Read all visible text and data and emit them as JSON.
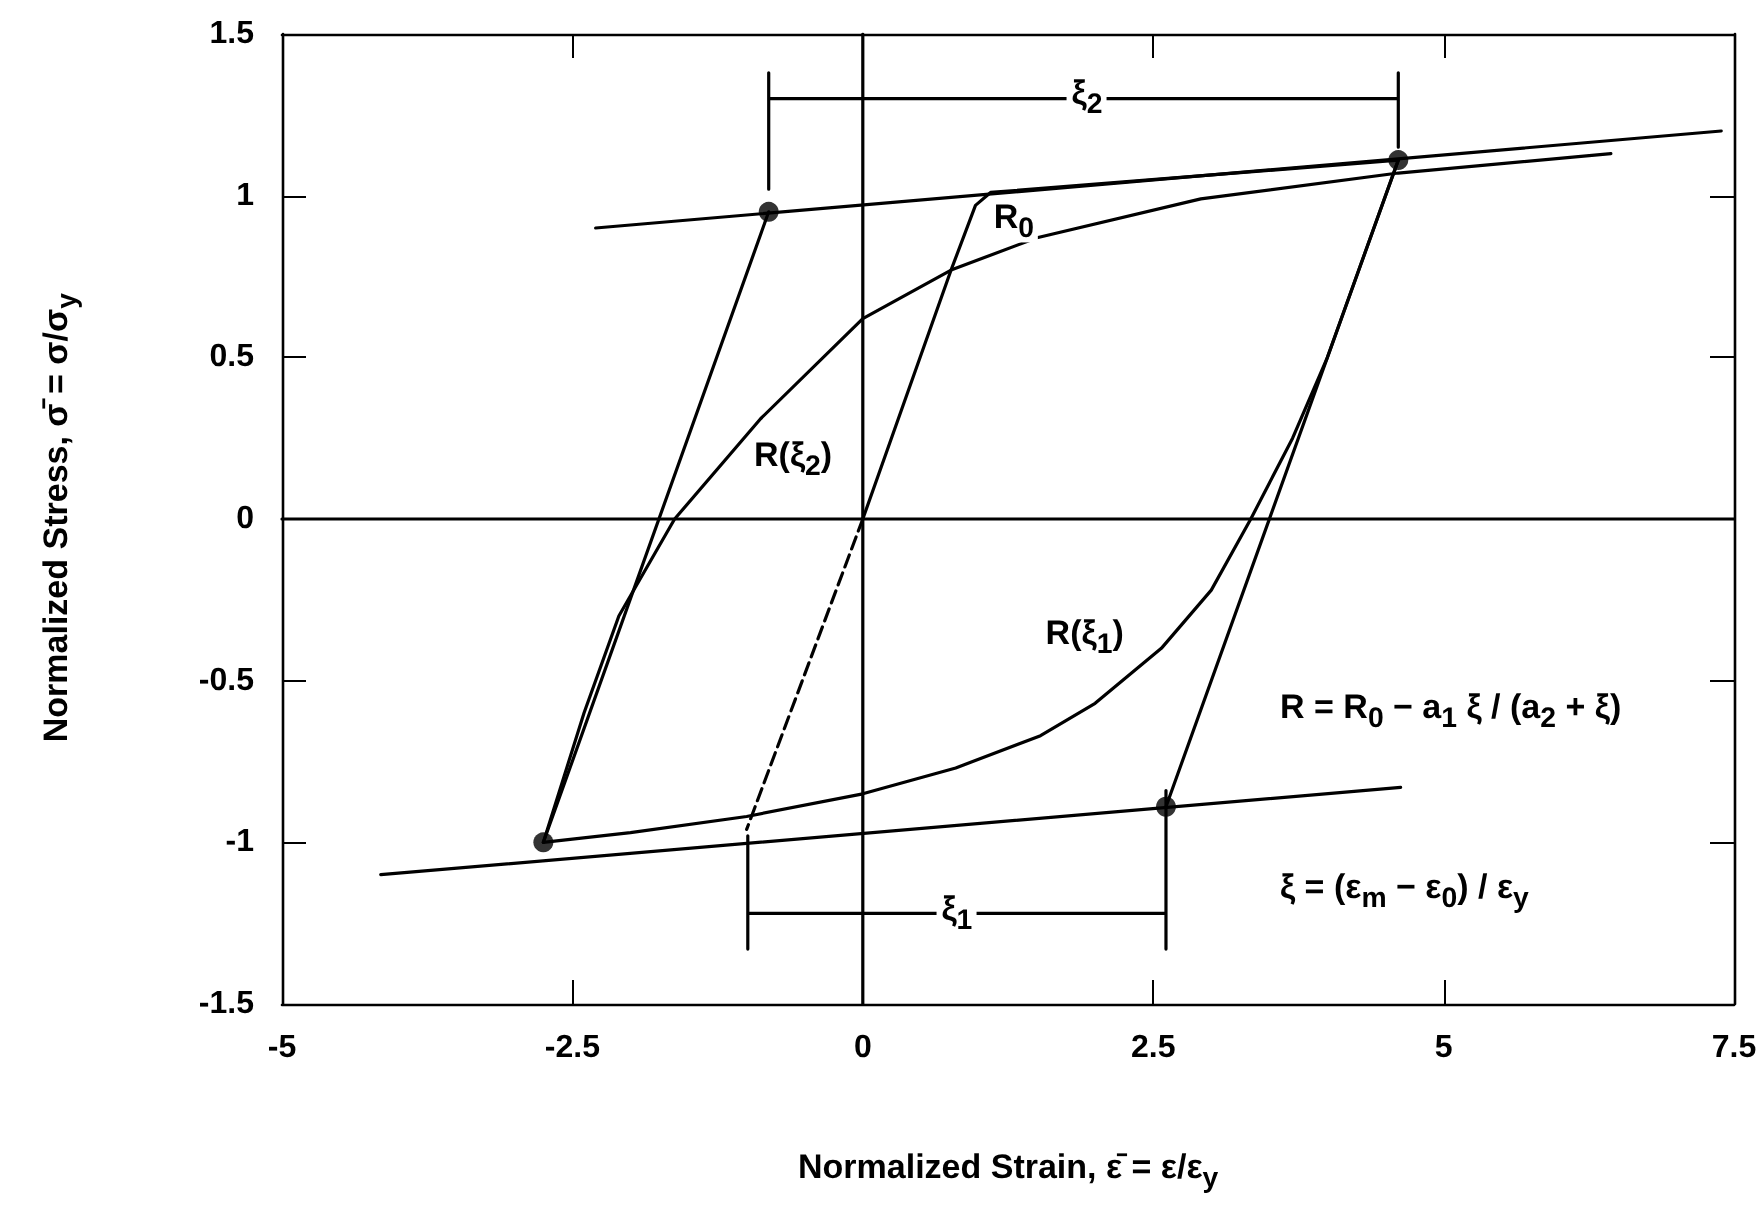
{
  "chart_data": {
    "type": "line",
    "xlabel": "Normalized Strain,  ε̄ = ε/ε$_{y}$",
    "ylabel": "Normalized Stress,  σ̄ = σ/σ$_{y}$",
    "xlim": [
      -5,
      7.5
    ],
    "xticks": [
      -5,
      -2.5,
      0,
      2.5,
      5,
      7.5
    ],
    "ylim": [
      -1.5,
      1.5
    ],
    "yticks": [
      -1.5,
      -1,
      -0.5,
      0,
      0.5,
      1,
      1.5
    ],
    "grid": false,
    "marker": "none",
    "line_style": "solid",
    "series": [
      {
        "color": "#000000",
        "x": [
          0,
          0
        ],
        "values": [
          -1.5,
          1.5
        ]
      },
      {
        "color": "#000000",
        "x": [
          -5,
          7.5
        ],
        "values": [
          0,
          0
        ]
      },
      {
        "type": "line",
        "color": "#000000",
        "x": [
          -2.3,
          7.39
        ],
        "values": [
          0.9,
          1.2
        ]
      },
      {
        "type": "line",
        "color": "#000000",
        "x": [
          -4.15,
          4.63
        ],
        "values": [
          -1.1,
          -0.83
        ]
      },
      {
        "type": "line",
        "color": "#000000",
        "x": [
          -2.75,
          -0.81
        ],
        "values": [
          -1.0,
          0.95
        ]
      },
      {
        "type": "line",
        "color": "#000000",
        "x": [
          2.61,
          4.61
        ],
        "values": [
          -0.89,
          1.11
        ]
      },
      {
        "type": "line",
        "color": "#000000",
        "line_style": "dashed",
        "x": [
          0,
          -1.0
        ],
        "values": [
          0,
          -0.96
        ]
      },
      {
        "type": "line",
        "color": "#000000",
        "x": [
          0,
          0.76,
          0.97,
          1.1,
          4.61
        ],
        "values": [
          0,
          0.77,
          0.97,
          1.01,
          1.11
        ]
      },
      {
        "type": "line",
        "color": "#000000",
        "x": [
          4.61,
          4.3,
          4.0,
          3.7,
          3.34,
          3.0,
          2.57,
          2.0,
          1.53,
          0.8,
          0,
          -1.0,
          -2.0,
          -2.75
        ],
        "values": [
          1.11,
          0.8,
          0.5,
          0.25,
          0,
          -0.22,
          -0.4,
          -0.57,
          -0.67,
          -0.77,
          -0.85,
          -0.92,
          -0.97,
          -1.0
        ]
      },
      {
        "type": "line",
        "color": "#000000",
        "x": [
          -2.75,
          -2.4,
          -2.1,
          -1.62,
          -0.88,
          0,
          0.76,
          1.5,
          2.91,
          4.61,
          6.44
        ],
        "values": [
          -1.0,
          -0.6,
          -0.3,
          0,
          0.31,
          0.62,
          0.77,
          0.87,
          0.99,
          1.07,
          1.13
        ]
      },
      {
        "color": "#000000",
        "x": [
          -0.81,
          -0.81,
          -0.81,
          4.61,
          4.61,
          4.61
        ],
        "values": [
          1.02,
          1.38,
          1.3,
          1.3,
          1.38,
          1.15
        ]
      },
      {
        "color": "#000000",
        "x": [
          -0.99,
          -0.99,
          -0.99,
          2.61,
          2.61,
          2.61
        ],
        "values": [
          -0.98,
          -1.33,
          -1.22,
          -1.22,
          -1.33,
          -0.84
        ]
      },
      {
        "type": "scatter",
        "color": "#000000",
        "marker": "circle",
        "x": [
          -0.81,
          4.61,
          2.61,
          -2.75
        ],
        "values": [
          0.95,
          1.11,
          -0.89,
          -1.0
        ]
      }
    ],
    "annotations": [
      {
        "text": "ξ$_{2}$",
        "x": 1.93,
        "y": 1.3
      },
      {
        "text": "ξ$_{1}$",
        "x": 0.81,
        "y": -1.22
      },
      {
        "text": "R$_{0}$",
        "x": 1.3,
        "y": 0.92
      },
      {
        "text": "R(ξ$_{2}$)",
        "x": -0.6,
        "y": 0.18
      },
      {
        "text": "R(ξ$_{1}$)",
        "x": 1.91,
        "y": -0.37
      },
      "R = R$_{0}$ − a$_{1}$ ξ / (a$_{2}$ + ξ)",
      "ξ = (ε$_{m}$ − ε$_{0}$) / ε$_{y}$"
    ]
  }
}
